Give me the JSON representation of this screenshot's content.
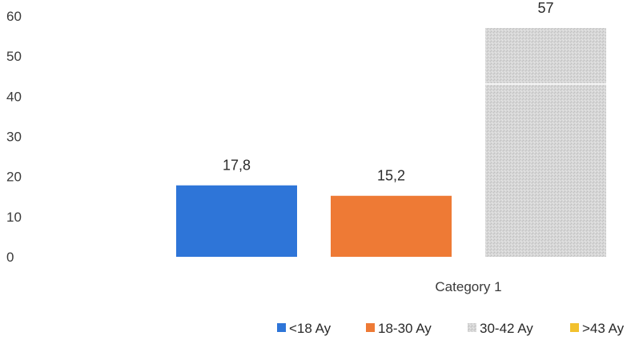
{
  "chart_data": {
    "type": "bar",
    "categories": [
      "Category 1"
    ],
    "series": [
      {
        "name": "<18 Ay",
        "values": [
          17.8
        ],
        "label": "17,8",
        "color": "#2E75D8"
      },
      {
        "name": "18-30 Ay",
        "values": [
          15.2
        ],
        "label": "15,2",
        "color": "#EE7A35"
      },
      {
        "name": "30-42 Ay",
        "values": [
          57
        ],
        "label": "57",
        "color": "#D8D8D8"
      },
      {
        "name": ">43 Ay",
        "values": [
          null
        ],
        "label": "",
        "color": "#F2C12E"
      }
    ],
    "y_ticks": [
      "0",
      "10",
      "20",
      "30",
      "40",
      "50",
      "60"
    ],
    "ylim": [
      0,
      60
    ],
    "grid": false,
    "legend_position": "bottom-right"
  }
}
